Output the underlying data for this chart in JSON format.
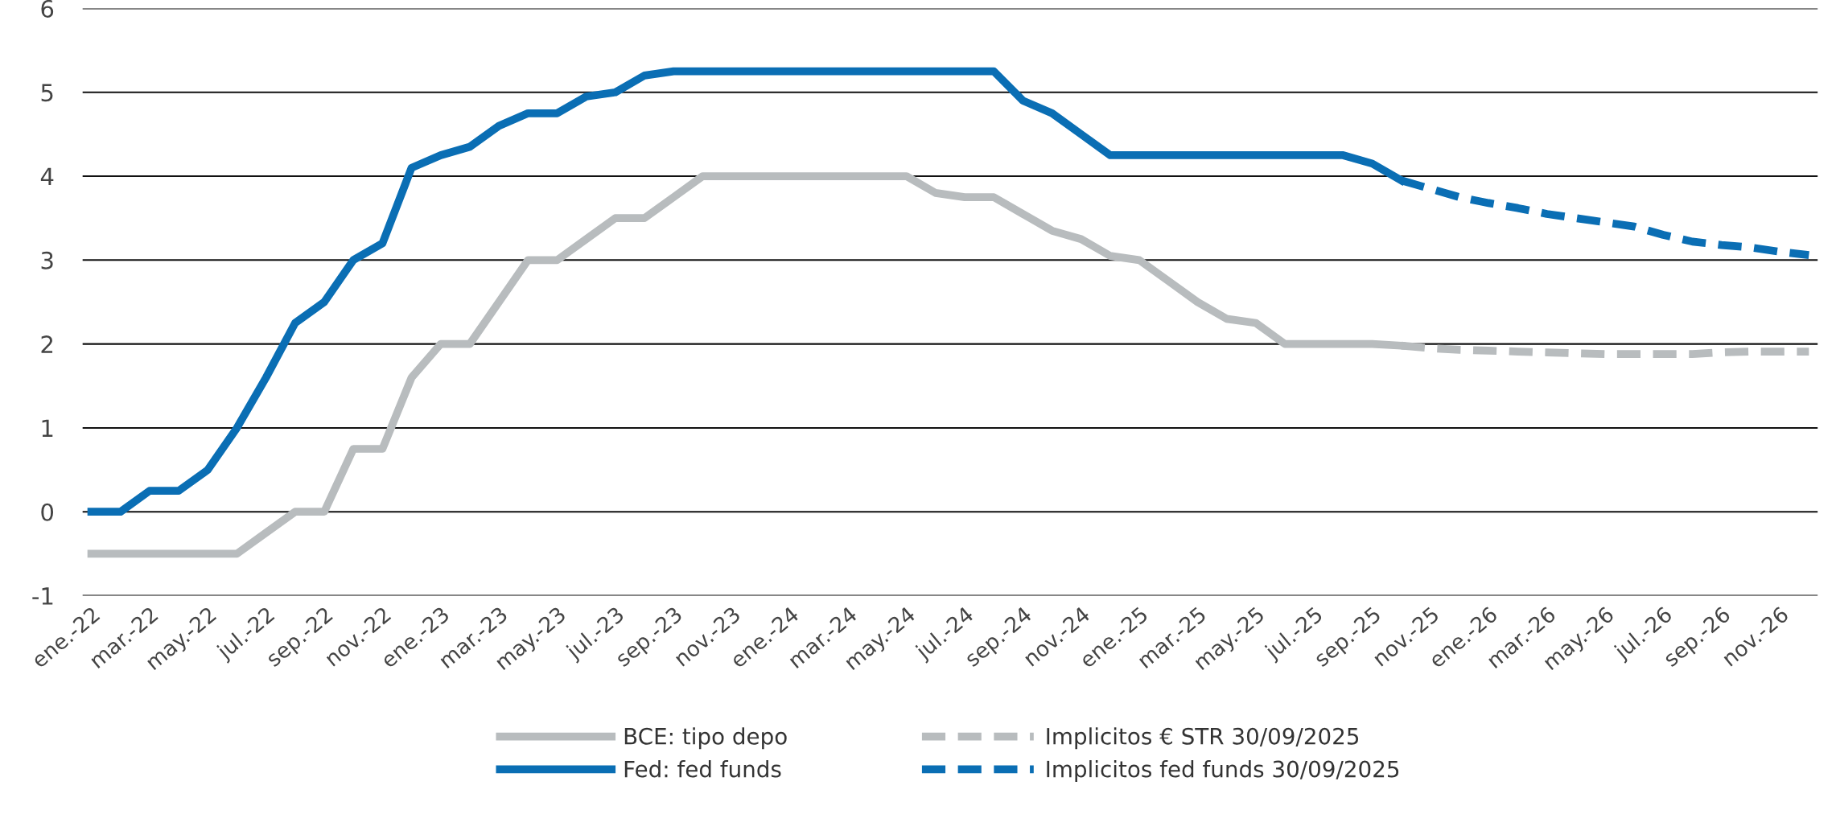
{
  "chart_data": {
    "type": "line",
    "categories": [
      "ene.-22",
      null,
      "mar.-22",
      null,
      "may.-22",
      null,
      "jul.-22",
      null,
      "sep.-22",
      null,
      "nov.-22",
      null,
      "ene.-23",
      null,
      "mar.-23",
      null,
      "may.-23",
      null,
      "jul.-23",
      null,
      "sep.-23",
      null,
      "nov.-23",
      null,
      "ene.-24",
      null,
      "mar.-24",
      null,
      "may.-24",
      null,
      "jul.-24",
      null,
      "sep.-24",
      null,
      "nov.-24",
      null,
      "ene.-25",
      null,
      "mar.-25",
      null,
      "may.-25",
      null,
      "jul.-25",
      null,
      "sep.-25",
      null,
      "nov.-25",
      null,
      "ene.-26",
      null,
      "mar.-26",
      null,
      "may.-26",
      null,
      "jul.-26",
      null,
      "sep.-26",
      null,
      "nov.-26",
      null
    ],
    "series": [
      {
        "name": "BCE: tipo depo",
        "color": "#b8bcbe",
        "line_style": "solid",
        "values": [
          -0.5,
          -0.5,
          -0.5,
          -0.5,
          -0.5,
          -0.5,
          -0.25,
          0,
          0,
          0.75,
          0.75,
          1.6,
          2,
          2,
          2.5,
          3,
          3,
          3.25,
          3.5,
          3.5,
          3.75,
          4,
          4,
          4,
          4,
          4,
          4,
          4,
          4,
          3.8,
          3.75,
          3.75,
          3.55,
          3.35,
          3.25,
          3.05,
          3,
          2.75,
          2.5,
          2.3,
          2.25,
          2,
          2,
          2,
          2,
          1.98,
          null,
          null,
          null,
          null,
          null,
          null,
          null,
          null,
          null,
          null,
          null,
          null,
          null,
          null
        ]
      },
      {
        "name": "Fed: fed funds",
        "color": "#0a6eb4",
        "line_style": "solid",
        "values": [
          0,
          0,
          0.25,
          0.25,
          0.5,
          1,
          1.6,
          2.25,
          2.5,
          3,
          3.2,
          4.1,
          4.25,
          4.35,
          4.6,
          4.75,
          4.75,
          4.95,
          5,
          5.2,
          5.25,
          5.25,
          5.25,
          5.25,
          5.25,
          5.25,
          5.25,
          5.25,
          5.25,
          5.25,
          5.25,
          5.25,
          4.9,
          4.75,
          4.5,
          4.25,
          4.25,
          4.25,
          4.25,
          4.25,
          4.25,
          4.25,
          4.25,
          4.25,
          4.15,
          3.95,
          null,
          null,
          null,
          null,
          null,
          null,
          null,
          null,
          null,
          null,
          null,
          null,
          null,
          null
        ]
      },
      {
        "name": "Implicitos € STR 30/09/2025",
        "color": "#b8bcbe",
        "line_style": "dashed",
        "values": [
          null,
          null,
          null,
          null,
          null,
          null,
          null,
          null,
          null,
          null,
          null,
          null,
          null,
          null,
          null,
          null,
          null,
          null,
          null,
          null,
          null,
          null,
          null,
          null,
          null,
          null,
          null,
          null,
          null,
          null,
          null,
          null,
          null,
          null,
          null,
          null,
          null,
          null,
          null,
          null,
          null,
          null,
          null,
          null,
          null,
          1.98,
          1.95,
          1.93,
          1.92,
          1.91,
          1.9,
          1.89,
          1.88,
          1.88,
          1.88,
          1.88,
          1.9,
          1.91,
          1.91,
          1.91
        ]
      },
      {
        "name": "Implicitos fed funds 30/09/2025",
        "color": "#0a6eb4",
        "line_style": "dashed",
        "values": [
          null,
          null,
          null,
          null,
          null,
          null,
          null,
          null,
          null,
          null,
          null,
          null,
          null,
          null,
          null,
          null,
          null,
          null,
          null,
          null,
          null,
          null,
          null,
          null,
          null,
          null,
          null,
          null,
          null,
          null,
          null,
          null,
          null,
          null,
          null,
          null,
          null,
          null,
          null,
          null,
          null,
          null,
          null,
          null,
          null,
          3.95,
          3.85,
          3.75,
          3.68,
          3.62,
          3.55,
          3.5,
          3.45,
          3.4,
          3.3,
          3.22,
          3.18,
          3.15,
          3.1,
          3.06
        ]
      }
    ],
    "ylim": [
      -1,
      6
    ],
    "yticks": [
      {
        "value": -1,
        "label": "-1"
      },
      0,
      1,
      2,
      3,
      4,
      5,
      6
    ],
    "grid": "y",
    "legend": "bottom"
  }
}
